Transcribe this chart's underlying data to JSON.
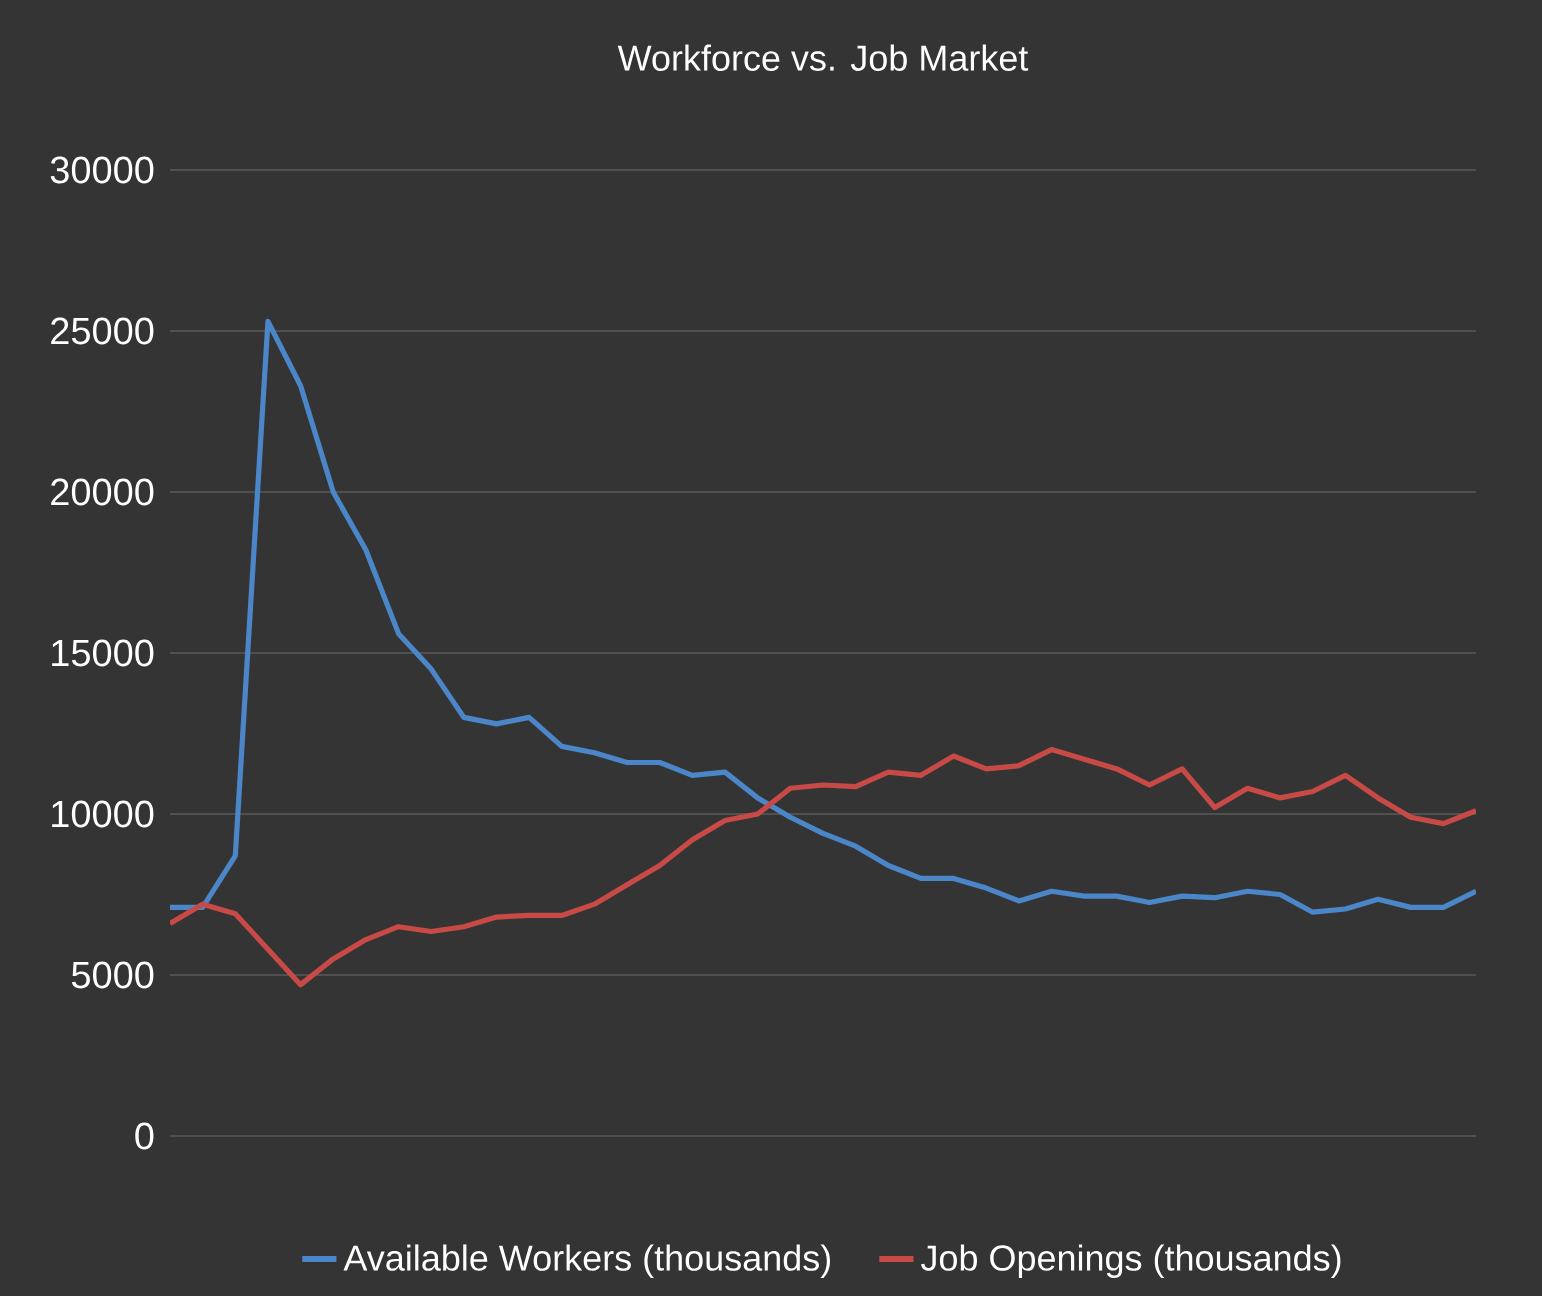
{
  "chart_data": {
    "type": "line",
    "title": "Workforce vs. Job Market",
    "categories": [
      null,
      null,
      null,
      null,
      null,
      null,
      null,
      null,
      null,
      null,
      null,
      null,
      null,
      null,
      null,
      null,
      null,
      null,
      null,
      null,
      null,
      null,
      null,
      null,
      null,
      null,
      null,
      null,
      null,
      null,
      null,
      null,
      null,
      null,
      null,
      null,
      null,
      null,
      null,
      null,
      null
    ],
    "series": [
      {
        "name": "Available Workers (thousands)",
        "color": "#4a86c8",
        "values": [
          7100,
          7100,
          8700,
          25300,
          23300,
          20000,
          18200,
          15600,
          14500,
          13000,
          12800,
          13000,
          12100,
          11900,
          11600,
          11600,
          11200,
          11300,
          10500,
          9900,
          9400,
          9000,
          8400,
          8000,
          8000,
          7700,
          7300,
          7600,
          7450,
          7450,
          7250,
          7450,
          7400,
          7600,
          7500,
          6950,
          7050,
          7350,
          7100,
          7100,
          7600
        ]
      },
      {
        "name": "Job Openings (thousands)",
        "color": "#c84a46",
        "values": [
          6600,
          7200,
          6900,
          5800,
          4700,
          5500,
          6100,
          6500,
          6350,
          6500,
          6800,
          6850,
          6850,
          7200,
          7800,
          8400,
          9200,
          9800,
          10000,
          10800,
          10900,
          10850,
          11300,
          11200,
          11800,
          11400,
          11500,
          12000,
          11700,
          11400,
          10900,
          11400,
          10200,
          10800,
          10500,
          10700,
          11200,
          10500,
          9900,
          9700,
          10100
        ]
      }
    ],
    "ylim": [
      0,
      30000
    ],
    "yticks": [
      0,
      5000,
      10000,
      15000,
      20000,
      25000,
      30000
    ],
    "grid": "y",
    "legend": "bottom",
    "marker": "none",
    "line_style": "solid"
  }
}
